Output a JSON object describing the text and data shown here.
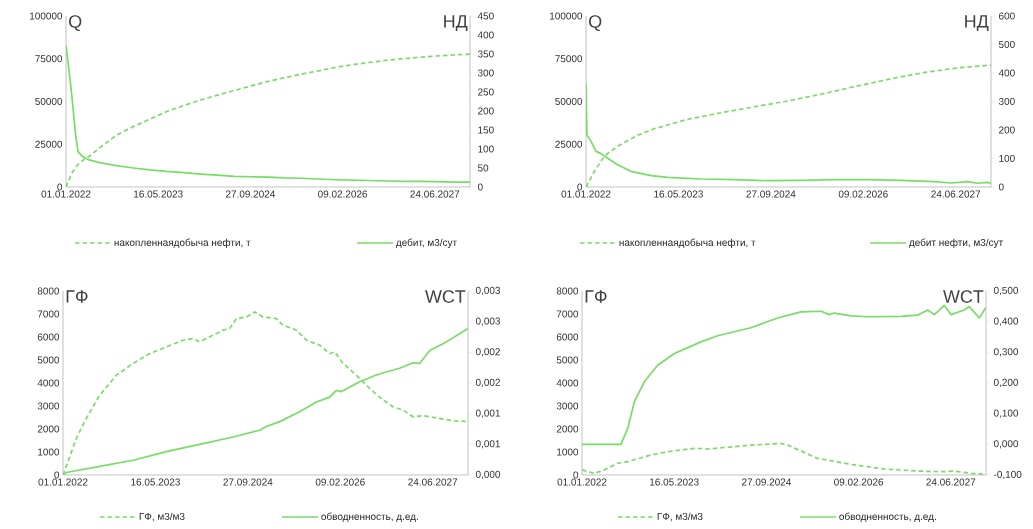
{
  "chart_data": [
    {
      "type": "line",
      "ylabel": "Q",
      "y2label": "НД",
      "legend": "bottom",
      "xlim": [
        "2022-01-01",
        "2028-01-01"
      ],
      "xticks": [
        {
          "value": "2022-01-01",
          "label": "01.01.2022"
        },
        {
          "value": "2023-05-16",
          "label": "16.05.2023"
        },
        {
          "value": "2024-09-27",
          "label": "27.09.2024"
        },
        {
          "value": "2026-02-09",
          "label": "09.02.2026"
        },
        {
          "value": "2027-06-24",
          "label": "24.06.2027"
        }
      ],
      "ylim": [
        0,
        100000
      ],
      "yticks": [
        0,
        25000,
        50000,
        75000,
        100000
      ],
      "y2lim": [
        0,
        450
      ],
      "y2ticks": [
        0,
        50,
        100,
        150,
        200,
        250,
        300,
        350,
        400,
        450
      ],
      "series": [
        {
          "name": "накопленнаядобыча нефти, т",
          "color": "#77dd66",
          "line_style": "dashed",
          "x": [
            "2022-01-01",
            "2022-02-01",
            "2022-03-01",
            "2022-04-01",
            "2022-05-01",
            "2022-07-01",
            "2022-10-01",
            "2023-01-01",
            "2023-04-01",
            "2023-07-01",
            "2023-10-01",
            "2024-01-01",
            "2024-04-01",
            "2024-07-01",
            "2024-10-01",
            "2025-01-01",
            "2025-04-01",
            "2025-07-01",
            "2025-10-01",
            "2026-01-01",
            "2026-04-01",
            "2026-07-01",
            "2026-10-01",
            "2027-01-01",
            "2027-04-01",
            "2027-07-01",
            "2027-10-01",
            "2028-01-01"
          ],
          "values": [
            0,
            8000,
            12500,
            15500,
            17500,
            22700,
            30300,
            35300,
            39700,
            44100,
            47600,
            50900,
            53700,
            56400,
            59100,
            61800,
            63900,
            66000,
            67900,
            69900,
            71500,
            72800,
            74000,
            75000,
            75800,
            76600,
            77200,
            77700
          ]
        },
        {
          "name": "дебит, м3/сут",
          "color": "#77dd66",
          "line_style": "solid",
          "axis": "y2",
          "x": [
            "2022-01-01",
            "2022-01-15",
            "2022-02-02",
            "2022-02-21",
            "2022-03-07",
            "2022-04-01",
            "2022-05-01",
            "2022-07-01",
            "2022-10-01",
            "2023-01-01",
            "2023-04-01",
            "2023-07-01",
            "2023-10-01",
            "2024-01-01",
            "2024-04-01",
            "2024-07-01",
            "2024-10-01",
            "2025-01-01",
            "2025-04-01",
            "2025-07-01",
            "2025-10-01",
            "2026-01-01",
            "2026-04-01",
            "2026-07-01",
            "2026-10-01",
            "2027-01-01",
            "2027-04-01",
            "2027-07-01",
            "2027-10-01",
            "2028-01-01"
          ],
          "values": [
            373,
            316,
            238,
            142,
            93,
            80,
            72,
            64,
            56,
            50,
            45,
            41,
            38,
            34,
            31,
            28,
            27,
            26,
            24,
            23,
            21,
            19,
            18,
            17,
            16,
            15,
            15,
            14,
            13,
            13
          ]
        }
      ]
    },
    {
      "type": "line",
      "ylabel": "Q",
      "y2label": "НД",
      "legend": "bottom",
      "xlim": [
        "2022-01-01",
        "2028-01-01"
      ],
      "xticks": [
        {
          "value": "2022-01-01",
          "label": "01.01.2022"
        },
        {
          "value": "2023-05-16",
          "label": "16.05.2023"
        },
        {
          "value": "2024-09-27",
          "label": "27.09.2024"
        },
        {
          "value": "2026-02-09",
          "label": "09.02.2026"
        },
        {
          "value": "2027-06-24",
          "label": "24.06.2027"
        }
      ],
      "ylim": [
        0,
        100000
      ],
      "yticks": [
        0,
        25000,
        50000,
        75000,
        100000
      ],
      "y2lim": [
        0,
        600
      ],
      "y2ticks": [
        0,
        100,
        200,
        300,
        400,
        500,
        600
      ],
      "series": [
        {
          "name": "накопленнаядобыча нефти, т",
          "color": "#77dd66",
          "line_style": "dashed",
          "x": [
            "2022-01-01",
            "2022-02-15",
            "2022-04-01",
            "2022-05-01",
            "2022-07-01",
            "2022-10-01",
            "2023-01-01",
            "2023-07-01",
            "2024-01-01",
            "2024-07-01",
            "2025-01-01",
            "2025-07-01",
            "2026-01-01",
            "2026-07-01",
            "2027-01-01",
            "2027-07-01",
            "2028-01-01"
          ],
          "values": [
            0,
            9100,
            16500,
            19900,
            24400,
            30000,
            33900,
            39500,
            43400,
            46900,
            50400,
            54400,
            58900,
            63100,
            66900,
            69600,
            71300
          ]
        },
        {
          "name": "дебит нефти, м3/сут",
          "color": "#77dd66",
          "line_style": "solid",
          "axis": "y2",
          "x": [
            "2022-01-01",
            "2022-01-06",
            "2022-01-28",
            "2022-02-24",
            "2022-03-23",
            "2022-04-28",
            "2022-06-21",
            "2022-09-01",
            "2022-12-19",
            "2023-03-19",
            "2023-09-15",
            "2024-03-14",
            "2024-09-10",
            "2025-03-09",
            "2025-09-06",
            "2026-03-04",
            "2026-08-31",
            "2027-03-01",
            "2027-05-30",
            "2027-08-28",
            "2027-10-21",
            "2027-12-14",
            "2028-01-01"
          ],
          "values": [
            363,
            183,
            160,
            125,
            117,
            101,
            78,
            55,
            40,
            34,
            28,
            26,
            22,
            23,
            26,
            26,
            23,
            19,
            14,
            19,
            13,
            16,
            13
          ]
        }
      ]
    },
    {
      "type": "line",
      "ylabel": "ГФ",
      "y2label": "WCT",
      "legend": "bottom",
      "xlim": [
        "2022-01-01",
        "2028-01-01"
      ],
      "xticks": [
        {
          "value": "2022-01-01",
          "label": "01.01.2022"
        },
        {
          "value": "2023-05-16",
          "label": "16.05.2023"
        },
        {
          "value": "2024-09-27",
          "label": "27.09.2024"
        },
        {
          "value": "2026-02-09",
          "label": "09.02.2026"
        },
        {
          "value": "2027-06-24",
          "label": "24.06.2027"
        }
      ],
      "ylim": [
        0,
        8000
      ],
      "yticks": [
        0,
        1000,
        2000,
        3000,
        4000,
        5000,
        6000,
        7000,
        8000
      ],
      "y2lim": [
        0,
        0.003
      ],
      "y2ticks": [
        {
          "value": 0,
          "label": "0,000"
        },
        {
          "value": 0.0005,
          "label": "0,001"
        },
        {
          "value": 0.001,
          "label": "0,001"
        },
        {
          "value": 0.0015,
          "label": "0,002"
        },
        {
          "value": 0.002,
          "label": "0,002"
        },
        {
          "value": 0.0025,
          "label": "0,003"
        },
        {
          "value": 0.003,
          "label": "0,003"
        }
      ],
      "series": [
        {
          "name": "ГФ, м3/м3",
          "color": "#77dd66",
          "line_style": "dashed",
          "x": [
            "2022-01-01",
            "2022-01-28",
            "2022-03-14",
            "2022-05-07",
            "2022-07-18",
            "2022-10-17",
            "2023-01-15",
            "2023-04-15",
            "2023-07-14",
            "2023-10-12",
            "2023-12-05",
            "2024-01-10",
            "2024-04-10",
            "2024-05-16",
            "2024-06-21",
            "2024-07-27",
            "2024-09-19",
            "2024-11-03",
            "2024-12-18",
            "2025-02-28",
            "2025-04-05",
            "2025-06-16",
            "2025-08-10",
            "2025-10-21",
            "2025-12-14",
            "2026-01-10",
            "2026-02-24",
            "2026-05-07",
            "2026-07-18",
            "2026-09-28",
            "2026-11-21",
            "2027-01-14",
            "2027-03-09",
            "2027-05-03",
            "2027-08-01",
            "2027-10-12",
            "2028-01-01"
          ],
          "values": [
            0,
            580,
            1590,
            2460,
            3470,
            4340,
            4850,
            5280,
            5570,
            5860,
            5930,
            5790,
            6150,
            6300,
            6370,
            6800,
            6870,
            7090,
            6870,
            6800,
            6510,
            6300,
            5860,
            5640,
            5280,
            5350,
            4850,
            4340,
            3760,
            3260,
            2970,
            2820,
            2530,
            2580,
            2460,
            2360,
            2320
          ]
        },
        {
          "name": "обводненность, д.ед.",
          "color": "#77dd66",
          "line_style": "solid",
          "axis": "y2",
          "x": [
            "2022-01-01",
            "2022-01-19",
            "2022-07-18",
            "2023-01-15",
            "2023-07-14",
            "2024-01-10",
            "2024-07-09",
            "2024-11-30",
            "2025-01-05",
            "2025-03-18",
            "2025-05-11",
            "2025-07-04",
            "2025-10-03",
            "2025-12-14",
            "2026-01-19",
            "2026-02-15",
            "2026-05-25",
            "2026-08-23",
            "2026-10-16",
            "2026-12-27",
            "2027-03-10",
            "2027-04-15",
            "2027-06-08",
            "2027-09-06",
            "2028-01-01"
          ],
          "values": [
            0,
            4e-05,
            0.00014,
            0.00024,
            0.00038,
            0.0005,
            0.00062,
            0.00073,
            0.00079,
            0.00087,
            0.00095,
            0.00103,
            0.00119,
            0.00127,
            0.00138,
            0.00136,
            0.00152,
            0.00163,
            0.00168,
            0.00174,
            0.00183,
            0.00182,
            0.00203,
            0.00217,
            0.00239
          ]
        }
      ]
    },
    {
      "type": "line",
      "ylabel": "ГФ",
      "y2label": "WCT",
      "legend": "bottom",
      "xlim": [
        "2022-01-01",
        "2028-01-01"
      ],
      "xticks": [
        {
          "value": "2022-01-01",
          "label": "01.01.2022"
        },
        {
          "value": "2023-05-16",
          "label": "16.05.2023"
        },
        {
          "value": "2024-09-27",
          "label": "27.09.2024"
        },
        {
          "value": "2026-02-09",
          "label": "09.02.2026"
        },
        {
          "value": "2027-06-24",
          "label": "24.06.2027"
        }
      ],
      "ylim": [
        0,
        8000
      ],
      "yticks": [
        0,
        1000,
        2000,
        3000,
        4000,
        5000,
        6000,
        7000,
        8000
      ],
      "y2lim": [
        -0.1,
        0.5
      ],
      "y2ticks": [
        {
          "value": -0.1,
          "label": "-0,100"
        },
        {
          "value": 0,
          "label": "0,000"
        },
        {
          "value": 0.1,
          "label": "0,100"
        },
        {
          "value": 0.2,
          "label": "0,200"
        },
        {
          "value": 0.3,
          "label": "0,300"
        },
        {
          "value": 0.4,
          "label": "0,400"
        },
        {
          "value": 0.5,
          "label": "0,500"
        }
      ],
      "series": [
        {
          "name": "ГФ, м3/м3",
          "color": "#77dd66",
          "line_style": "dashed",
          "x": [
            "2022-01-01",
            "2022-03-09",
            "2022-05-02",
            "2022-07-13",
            "2022-09-06",
            "2023-01-10",
            "2023-04-11",
            "2023-09-02",
            "2023-11-13",
            "2024-04-06",
            "2024-07-05",
            "2024-12-15",
            "2025-01-20",
            "2025-04-03",
            "2025-07-02",
            "2025-12-30",
            "2026-06-29",
            "2026-12-26",
            "2027-05-20",
            "2027-07-13",
            "2027-10-12",
            "2028-01-01"
          ],
          "values": [
            220,
            70,
            220,
            510,
            580,
            870,
            1010,
            1160,
            1130,
            1230,
            1300,
            1370,
            1300,
            1040,
            720,
            460,
            260,
            170,
            140,
            170,
            70,
            30
          ]
        },
        {
          "name": "обводненность, д.ед.",
          "color": "#77dd66",
          "line_style": "solid",
          "axis": "y2",
          "x": [
            "2022-01-01",
            "2022-07-31",
            "2022-09-06",
            "2022-10-12",
            "2022-12-05",
            "2023-02-15",
            "2023-05-17",
            "2023-10-08",
            "2024-01-07",
            "2024-07-05",
            "2024-11-27",
            "2025-04-03",
            "2025-07-20",
            "2025-09-03",
            "2025-09-30",
            "2025-12-30",
            "2026-03-30",
            "2026-09-27",
            "2026-12-26",
            "2027-02-19",
            "2027-03-27",
            "2027-05-20",
            "2027-06-25",
            "2027-09-05",
            "2027-10-02",
            "2027-11-26",
            "2028-01-01"
          ],
          "values": [
            0,
            0,
            0.052,
            0.139,
            0.204,
            0.258,
            0.296,
            0.334,
            0.354,
            0.38,
            0.412,
            0.432,
            0.434,
            0.423,
            0.428,
            0.419,
            0.416,
            0.417,
            0.421,
            0.438,
            0.423,
            0.453,
            0.423,
            0.438,
            0.449,
            0.412,
            0.447
          ]
        }
      ]
    }
  ]
}
